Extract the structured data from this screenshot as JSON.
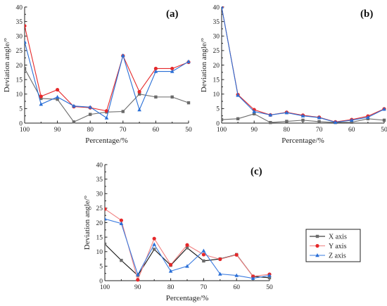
{
  "chart_data": [
    {
      "type": "line",
      "panel_label": "(a)",
      "xlabel": "Percentage/%",
      "ylabel": "Deviation angle/°",
      "xlim": [
        100,
        50
      ],
      "ylim": [
        0,
        40
      ],
      "x_ticks": [
        100,
        90,
        80,
        70,
        60,
        50
      ],
      "y_ticks": [
        0,
        5,
        10,
        15,
        20,
        25,
        30,
        35,
        40
      ],
      "x": [
        100,
        95,
        90,
        85,
        80,
        75,
        70,
        65,
        60,
        55,
        50
      ],
      "series": [
        {
          "name": "X axis",
          "values": [
            18.8,
            8.5,
            8.2,
            0.4,
            3.0,
            3.8,
            4.0,
            10.0,
            9.0,
            9.0,
            7.0
          ]
        },
        {
          "name": "Y axis",
          "values": [
            33.5,
            9.2,
            11.5,
            5.7,
            5.3,
            4.2,
            23.2,
            10.8,
            18.8,
            18.8,
            21.0
          ]
        },
        {
          "name": "Z axis",
          "values": [
            28.0,
            6.5,
            9.0,
            5.9,
            5.5,
            1.8,
            23.3,
            4.6,
            17.8,
            17.8,
            21.2
          ]
        }
      ]
    },
    {
      "type": "line",
      "panel_label": "(b)",
      "xlabel": "Percentage/%",
      "ylabel": "Deviation angle/°",
      "xlim": [
        100,
        50
      ],
      "ylim": [
        0,
        40
      ],
      "x_ticks": [
        100,
        90,
        80,
        70,
        60,
        50
      ],
      "y_ticks": [
        0,
        5,
        10,
        15,
        20,
        25,
        30,
        35,
        40
      ],
      "x": [
        100,
        95,
        90,
        85,
        80,
        75,
        70,
        65,
        60,
        55,
        50
      ],
      "series": [
        {
          "name": "X axis",
          "values": [
            1.2,
            1.5,
            3.2,
            0.2,
            0.6,
            1.0,
            0.5,
            0.2,
            0.3,
            1.5,
            1.0
          ]
        },
        {
          "name": "Y axis",
          "values": [
            40.0,
            9.8,
            4.6,
            2.8,
            3.7,
            2.7,
            2.0,
            0.4,
            1.2,
            2.4,
            4.9
          ]
        },
        {
          "name": "Z axis",
          "values": [
            40.0,
            9.6,
            4.0,
            2.8,
            3.6,
            2.5,
            1.9,
            0.3,
            1.0,
            2.0,
            4.8
          ]
        }
      ]
    },
    {
      "type": "line",
      "panel_label": "(c)",
      "xlabel": "Percentage/%",
      "ylabel": "Deviation angle/°",
      "xlim": [
        100,
        50
      ],
      "ylim": [
        0,
        40
      ],
      "x_ticks": [
        100,
        90,
        80,
        70,
        60,
        50
      ],
      "y_ticks": [
        0,
        5,
        10,
        15,
        20,
        25,
        30,
        35,
        40
      ],
      "x": [
        100,
        95,
        90,
        85,
        80,
        75,
        70,
        65,
        60,
        55,
        50
      ],
      "series": [
        {
          "name": "X axis",
          "values": [
            12.6,
            7.0,
            1.8,
            10.8,
            5.3,
            11.3,
            6.8,
            7.5,
            9.0,
            1.5,
            1.0
          ]
        },
        {
          "name": "Y axis",
          "values": [
            24.7,
            20.8,
            0.3,
            14.5,
            5.5,
            12.3,
            9.0,
            7.4,
            8.9,
            1.5,
            2.2
          ]
        },
        {
          "name": "Z axis",
          "values": [
            21.3,
            19.7,
            2.1,
            12.5,
            3.3,
            5.0,
            10.3,
            2.3,
            1.8,
            0.8,
            1.8
          ]
        }
      ]
    }
  ],
  "legend": {
    "entries": [
      "X axis",
      "Y axis",
      "Z axis"
    ]
  },
  "colors": {
    "X axis": "#6b6b6b",
    "Y axis": "#e5282a",
    "Z axis": "#2a6fd6",
    "X axis_c_line": "#111111",
    "Y axis_c_line": "#f08080",
    "Z axis_c_line": "#3a7be0"
  },
  "markers": {
    "X axis": "square",
    "Y axis": "circle",
    "Z axis": "triangle"
  }
}
